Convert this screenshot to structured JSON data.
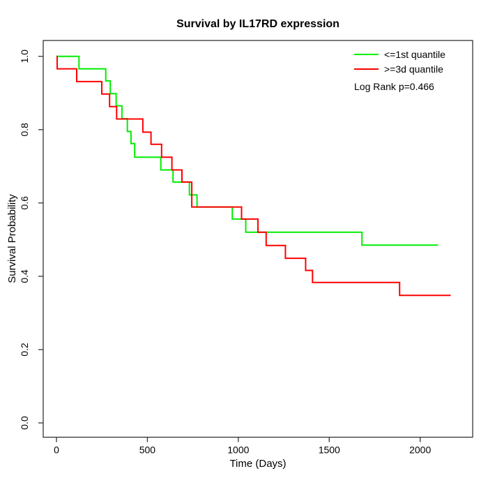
{
  "chart_data": {
    "type": "line",
    "style": "kaplan-meier-step",
    "title": "Survival by IL17RD expression",
    "xlabel": "Time (Days)",
    "ylabel": "Survival Probability",
    "xlim": [
      0,
      2290
    ],
    "ylim": [
      0.0,
      1.0
    ],
    "grid": false,
    "legend_position": "top-right",
    "annotation": "Log Rank p=0.466",
    "x_ticks": [
      {
        "value": 0,
        "label": "0"
      },
      {
        "value": 500,
        "label": "500"
      },
      {
        "value": 1000,
        "label": "1000"
      },
      {
        "value": 1500,
        "label": "1500"
      },
      {
        "value": 2000,
        "label": "2000"
      }
    ],
    "y_ticks": [
      {
        "value": 0.0,
        "label": "0.0"
      },
      {
        "value": 0.2,
        "label": "0.2"
      },
      {
        "value": 0.4,
        "label": "0.4"
      },
      {
        "value": 0.6,
        "label": "0.6"
      },
      {
        "value": 0.8,
        "label": "0.8"
      },
      {
        "value": 1.0,
        "label": "1.0"
      }
    ],
    "series": [
      {
        "name": "<=1st quantile",
        "color": "#00ee00",
        "end_time": 2098,
        "points": [
          [
            0,
            1.0
          ],
          [
            124,
            0.966
          ],
          [
            271,
            0.933
          ],
          [
            296,
            0.898
          ],
          [
            328,
            0.865
          ],
          [
            360,
            0.83
          ],
          [
            390,
            0.795
          ],
          [
            410,
            0.762
          ],
          [
            430,
            0.725
          ],
          [
            574,
            0.69
          ],
          [
            641,
            0.657
          ],
          [
            731,
            0.622
          ],
          [
            773,
            0.589
          ],
          [
            967,
            0.556
          ],
          [
            1041,
            0.52
          ],
          [
            1680,
            0.485
          ]
        ]
      },
      {
        "name": ">=3d quantile",
        "color": "#ff0000",
        "end_time": 2168,
        "points": [
          [
            0,
            1.0
          ],
          [
            4,
            0.966
          ],
          [
            111,
            0.931
          ],
          [
            249,
            0.897
          ],
          [
            292,
            0.863
          ],
          [
            331,
            0.829
          ],
          [
            475,
            0.793
          ],
          [
            520,
            0.76
          ],
          [
            578,
            0.725
          ],
          [
            635,
            0.69
          ],
          [
            690,
            0.657
          ],
          [
            744,
            0.589
          ],
          [
            1018,
            0.556
          ],
          [
            1108,
            0.52
          ],
          [
            1153,
            0.484
          ],
          [
            1259,
            0.449
          ],
          [
            1370,
            0.416
          ],
          [
            1408,
            0.383
          ],
          [
            1887,
            0.348
          ]
        ]
      }
    ]
  }
}
